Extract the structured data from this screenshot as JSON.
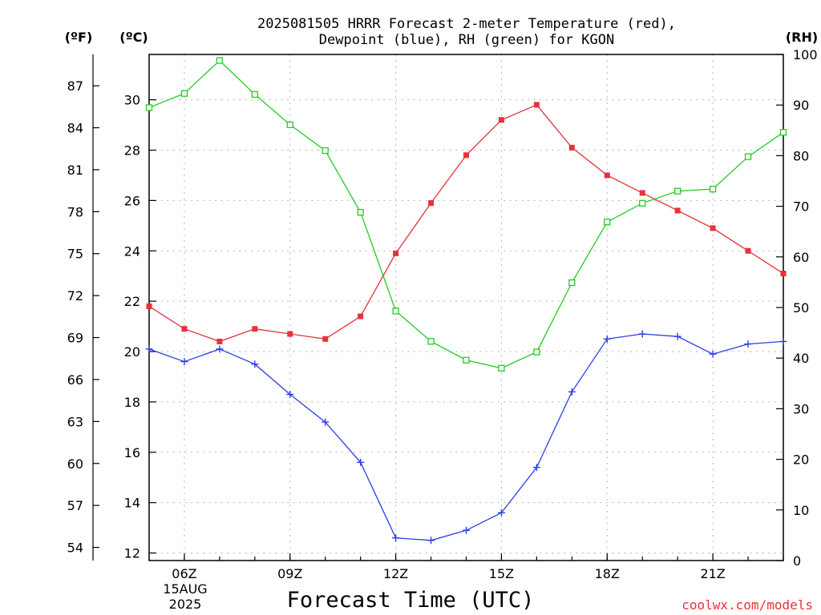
{
  "chart_data": {
    "type": "line",
    "title_line1": "2025081505 HRRR Forecast 2-meter Temperature (red),",
    "title_line2": "Dewpoint (blue), RH (green) for KGON",
    "xlabel": "Forecast Time (UTC)",
    "date_label": [
      "15AUG",
      "2025"
    ],
    "x_hours": [
      5,
      6,
      7,
      8,
      9,
      10,
      11,
      12,
      13,
      14,
      15,
      16,
      17,
      18,
      19,
      20,
      21,
      22,
      23
    ],
    "x_ticks": [
      {
        "hour": 6,
        "label": "06Z"
      },
      {
        "hour": 9,
        "label": "09Z"
      },
      {
        "hour": 12,
        "label": "12Z"
      },
      {
        "hour": 15,
        "label": "15Z"
      },
      {
        "hour": 18,
        "label": "18Z"
      },
      {
        "hour": 21,
        "label": "21Z"
      }
    ],
    "celsius_axis": {
      "label": "(ºC)",
      "range": [
        11.7,
        31.8
      ],
      "ticks": [
        12,
        14,
        16,
        18,
        20,
        22,
        24,
        26,
        28,
        30
      ]
    },
    "fahrenheit_axis": {
      "label": "(ºF)",
      "ticks": [
        54,
        57,
        60,
        63,
        66,
        69,
        72,
        75,
        78,
        81,
        84,
        87
      ]
    },
    "rh_axis": {
      "label": "(RH)",
      "range": [
        0,
        100
      ],
      "ticks": [
        0,
        10,
        20,
        30,
        40,
        50,
        60,
        70,
        80,
        90,
        100
      ]
    },
    "grid": true,
    "series": [
      {
        "key": "temperature",
        "axis": "celsius",
        "color": "#e8313b",
        "marker": "filled-square",
        "values": [
          21.8,
          20.9,
          20.4,
          20.9,
          20.7,
          20.5,
          21.4,
          23.9,
          25.9,
          27.8,
          29.2,
          29.8,
          28.1,
          27.0,
          26.3,
          25.6,
          24.9,
          24.0,
          23.1
        ]
      },
      {
        "key": "dewpoint",
        "axis": "celsius",
        "color": "#2a3fe6",
        "marker": "plus",
        "values": [
          20.1,
          19.6,
          20.1,
          19.5,
          18.3,
          17.2,
          15.6,
          12.6,
          12.5,
          12.9,
          13.6,
          15.4,
          18.4,
          20.5,
          20.7,
          20.6,
          19.9,
          20.3,
          20.4
        ]
      },
      {
        "key": "rh",
        "axis": "rh",
        "color": "#22cc22",
        "marker": "open-square",
        "values": [
          89.5,
          92.3,
          98.8,
          92.1,
          86.1,
          81.0,
          68.8,
          49.3,
          43.3,
          39.6,
          38.0,
          41.2,
          54.9,
          66.9,
          70.6,
          73.0,
          73.4,
          79.8,
          84.6
        ]
      }
    ]
  },
  "credit": "coolwx.com/models"
}
